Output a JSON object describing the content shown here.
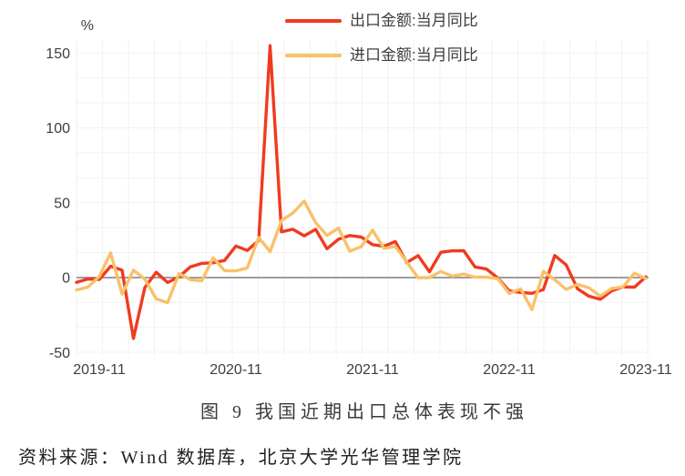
{
  "figure": {
    "caption": "图 9 我国近期出口总体表现不强",
    "source": "资料来源：Wind 数据库，北京大学光华管理学院"
  },
  "chart_data": {
    "type": "line",
    "title": "图 9 我国近期出口总体表现不强",
    "percent_label": "%",
    "grid": "faint minor grid",
    "legend_position": "top-center",
    "zero_line": true,
    "ylim": [
      -50,
      160
    ],
    "yticks": [
      150,
      100,
      50,
      0,
      -50
    ],
    "xtick_labels": [
      "2019-11",
      "2020-11",
      "2021-11",
      "2022-11",
      "2023-11"
    ],
    "xtick_indices": [
      2,
      14,
      26,
      38,
      50
    ],
    "x": [
      "2019-09",
      "2019-10",
      "2019-11",
      "2019-12",
      "2020-01",
      "2020-02",
      "2020-03",
      "2020-04",
      "2020-05",
      "2020-06",
      "2020-07",
      "2020-08",
      "2020-09",
      "2020-10",
      "2020-11",
      "2020-12",
      "2021-01",
      "2021-02",
      "2021-03",
      "2021-04",
      "2021-05",
      "2021-06",
      "2021-07",
      "2021-08",
      "2021-09",
      "2021-10",
      "2021-11",
      "2021-12",
      "2022-01",
      "2022-02",
      "2022-03",
      "2022-04",
      "2022-05",
      "2022-06",
      "2022-07",
      "2022-08",
      "2022-09",
      "2022-10",
      "2022-11",
      "2022-12",
      "2023-01",
      "2023-02",
      "2023-03",
      "2023-04",
      "2023-05",
      "2023-06",
      "2023-07",
      "2023-08",
      "2023-09",
      "2023-10",
      "2023-11"
    ],
    "series": [
      {
        "name": "出口金额:当月同比",
        "color": "#f03b20",
        "values": [
          -3.2,
          -0.9,
          -1.3,
          7.6,
          5.0,
          -40.6,
          -6.6,
          3.5,
          -3.3,
          0.5,
          7.2,
          9.5,
          9.9,
          11.4,
          21.1,
          18.1,
          24.8,
          154.9,
          30.6,
          32.3,
          27.9,
          32.2,
          19.3,
          25.6,
          28.1,
          27.1,
          22.0,
          20.9,
          24.1,
          10.0,
          14.7,
          3.9,
          16.9,
          17.9,
          18.0,
          7.1,
          5.7,
          -0.3,
          -8.9,
          -9.9,
          -10.5,
          -8.0,
          14.8,
          8.5,
          -7.5,
          -12.4,
          -14.5,
          -8.8,
          -6.2,
          -6.4,
          0.5
        ]
      },
      {
        "name": "进口金额:当月同比",
        "color": "#f9c169",
        "values": [
          -8.2,
          -6.4,
          0.8,
          16.5,
          -11.0,
          5.0,
          -1.0,
          -14.2,
          -16.7,
          2.7,
          -1.4,
          -2.1,
          13.2,
          4.7,
          4.5,
          6.5,
          26.8,
          17.3,
          38.1,
          43.1,
          51.1,
          36.7,
          28.1,
          33.1,
          17.6,
          20.6,
          31.7,
          19.5,
          20.8,
          10.4,
          -0.1,
          0.0,
          4.1,
          1.0,
          2.3,
          0.3,
          0.3,
          -0.7,
          -10.6,
          -7.5,
          -21.4,
          4.2,
          -1.4,
          -7.9,
          -4.5,
          -6.8,
          -12.4,
          -7.3,
          -6.2,
          3.0,
          -0.6
        ]
      }
    ]
  }
}
